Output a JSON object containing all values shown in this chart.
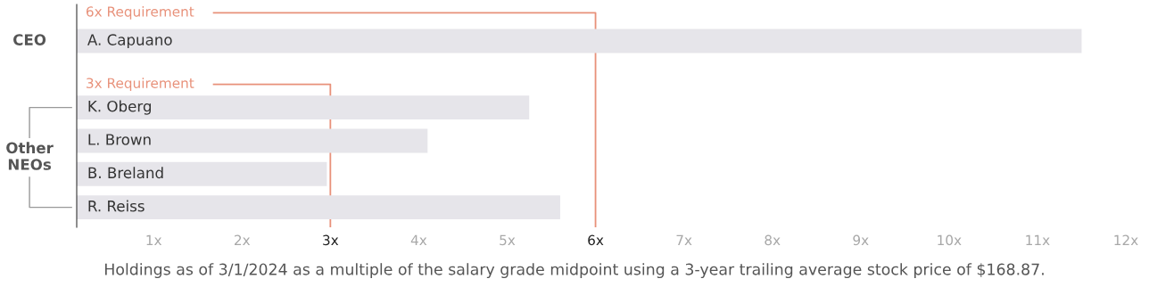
{
  "chart_data": {
    "type": "bar",
    "orientation": "horizontal",
    "categories": [
      "A. Capuano",
      null,
      "K. Oberg",
      "L. Brown",
      "B. Breland",
      "R. Reiss"
    ],
    "values": [
      11.5,
      null,
      5.25,
      4.1,
      2.96,
      5.6
    ],
    "color": "#e6e5ea",
    "xlim": [
      0.13,
      12
    ],
    "xticks": [
      {
        "value": 1,
        "label": "1x"
      },
      {
        "value": 2,
        "label": "2x"
      },
      {
        "value": 3,
        "label": "3x"
      },
      {
        "value": 4,
        "label": "4x"
      },
      {
        "value": 5,
        "label": "5x"
      },
      {
        "value": 6,
        "label": "6x"
      },
      {
        "value": 7,
        "label": "7x"
      },
      {
        "value": 8,
        "label": "8x"
      },
      {
        "value": 9,
        "label": "9x"
      },
      {
        "value": 10,
        "label": "10x"
      },
      {
        "value": 11,
        "label": "11x"
      },
      {
        "value": 12,
        "label": "12x"
      }
    ],
    "ref_lines": [
      {
        "axis": "x",
        "value": 6,
        "label": "6x Requirement",
        "color": "#e8917a"
      },
      {
        "axis": "x",
        "value": 3,
        "label": "3x Requirement",
        "color": "#e8917a"
      }
    ],
    "annotations": [
      "CEO",
      "Other NEOs",
      "Holdings as of 3/1/2024 as a multiple of the salary grade midpoint using a 3-year trailing average stock price of $168.87."
    ],
    "grid": false,
    "legend": false
  }
}
